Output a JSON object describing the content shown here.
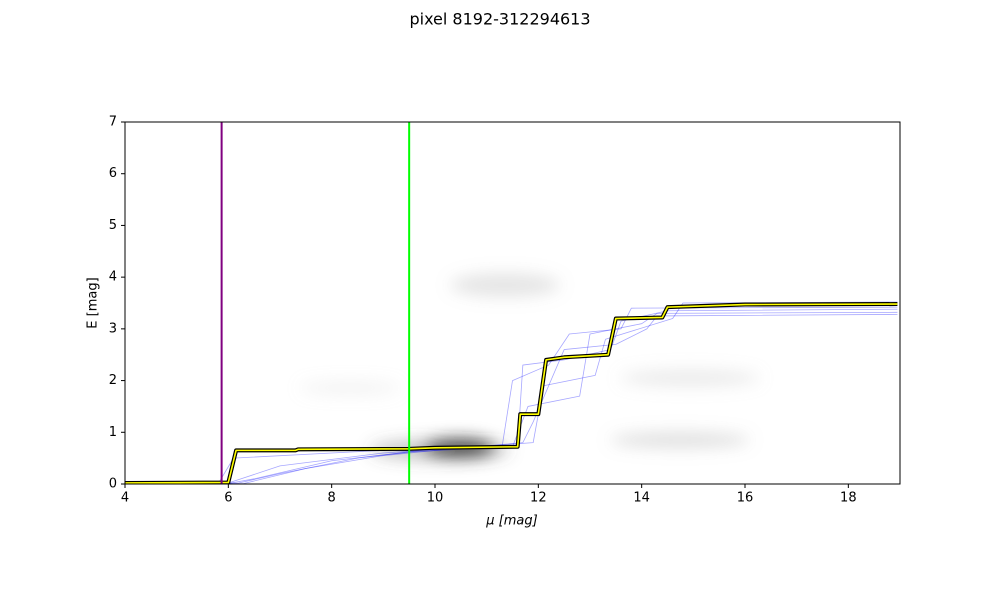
{
  "chart_data": {
    "type": "line",
    "title": "pixel 8192-312294613",
    "x_label": "μ [mag]",
    "y_label": "E [mag]",
    "xlim": [
      4,
      19
    ],
    "ylim": [
      0,
      7
    ],
    "xticks": [
      4,
      6,
      8,
      10,
      12,
      14,
      16,
      18
    ],
    "yticks": [
      0,
      1,
      2,
      3,
      4,
      5,
      6,
      7
    ],
    "grid": false,
    "vlines": [
      {
        "x": 5.87,
        "color": "#800080"
      },
      {
        "x": 9.5,
        "color": "#00ff00"
      }
    ],
    "series": [
      {
        "color": "rgba(0,0,255,0.35)",
        "x": [
          4,
          6,
          6.5,
          8,
          9.5,
          11,
          11.6,
          11.7,
          12.5,
          13.4,
          13.6,
          14.5,
          18.95
        ],
        "values": [
          0,
          0.01,
          0.1,
          0.45,
          0.62,
          0.7,
          0.75,
          2.3,
          2.4,
          2.6,
          3.15,
          3.35,
          3.38
        ]
      },
      {
        "color": "rgba(0,0,255,0.35)",
        "x": [
          4,
          6.2,
          7,
          8.5,
          10,
          11.5,
          11.8,
          12.8,
          13,
          14,
          14.3,
          18.95
        ],
        "values": [
          0,
          0.02,
          0.2,
          0.5,
          0.68,
          0.72,
          1.5,
          1.7,
          2.9,
          3.1,
          3.3,
          3.32
        ]
      },
      {
        "color": "rgba(0,0,255,0.35)",
        "x": [
          4,
          5.8,
          6.1,
          8,
          10,
          11.3,
          11.5,
          12.2,
          12.6,
          13.6,
          13.8,
          18.95
        ],
        "values": [
          0,
          0,
          0.5,
          0.6,
          0.7,
          0.73,
          2,
          2.3,
          2.9,
          3,
          3.4,
          3.42
        ]
      },
      {
        "color": "rgba(0,0,255,0.35)",
        "x": [
          4,
          6.3,
          7.5,
          9,
          10.5,
          11.9,
          12.1,
          13.1,
          13.3,
          14.6,
          14.8,
          18.95
        ],
        "values": [
          0,
          0.01,
          0.3,
          0.55,
          0.7,
          0.8,
          1.9,
          2.1,
          2.8,
          3.2,
          3.5,
          3.52
        ]
      },
      {
        "color": "rgba(0,0,255,0.35)",
        "x": [
          4,
          6,
          7,
          9,
          10.8,
          11.7,
          11.9,
          12.5,
          13.5,
          14.1,
          14.3,
          18.95
        ],
        "values": [
          0,
          0.02,
          0.35,
          0.6,
          0.72,
          0.8,
          1.2,
          2.6,
          2.7,
          3,
          3.25,
          3.28
        ]
      },
      {
        "color": "#ffff00",
        "outline": "#000000",
        "x": [
          4,
          6,
          6.15,
          7.3,
          7.35,
          9.5,
          10,
          11.6,
          11.65,
          12,
          12.15,
          12.5,
          13.35,
          13.5,
          14.4,
          14.5,
          16,
          18.95
        ],
        "values": [
          0.02,
          0.03,
          0.65,
          0.65,
          0.67,
          0.68,
          0.7,
          0.72,
          1.35,
          1.35,
          2.4,
          2.45,
          2.5,
          3.2,
          3.22,
          3.42,
          3.47,
          3.48
        ]
      }
    ]
  }
}
